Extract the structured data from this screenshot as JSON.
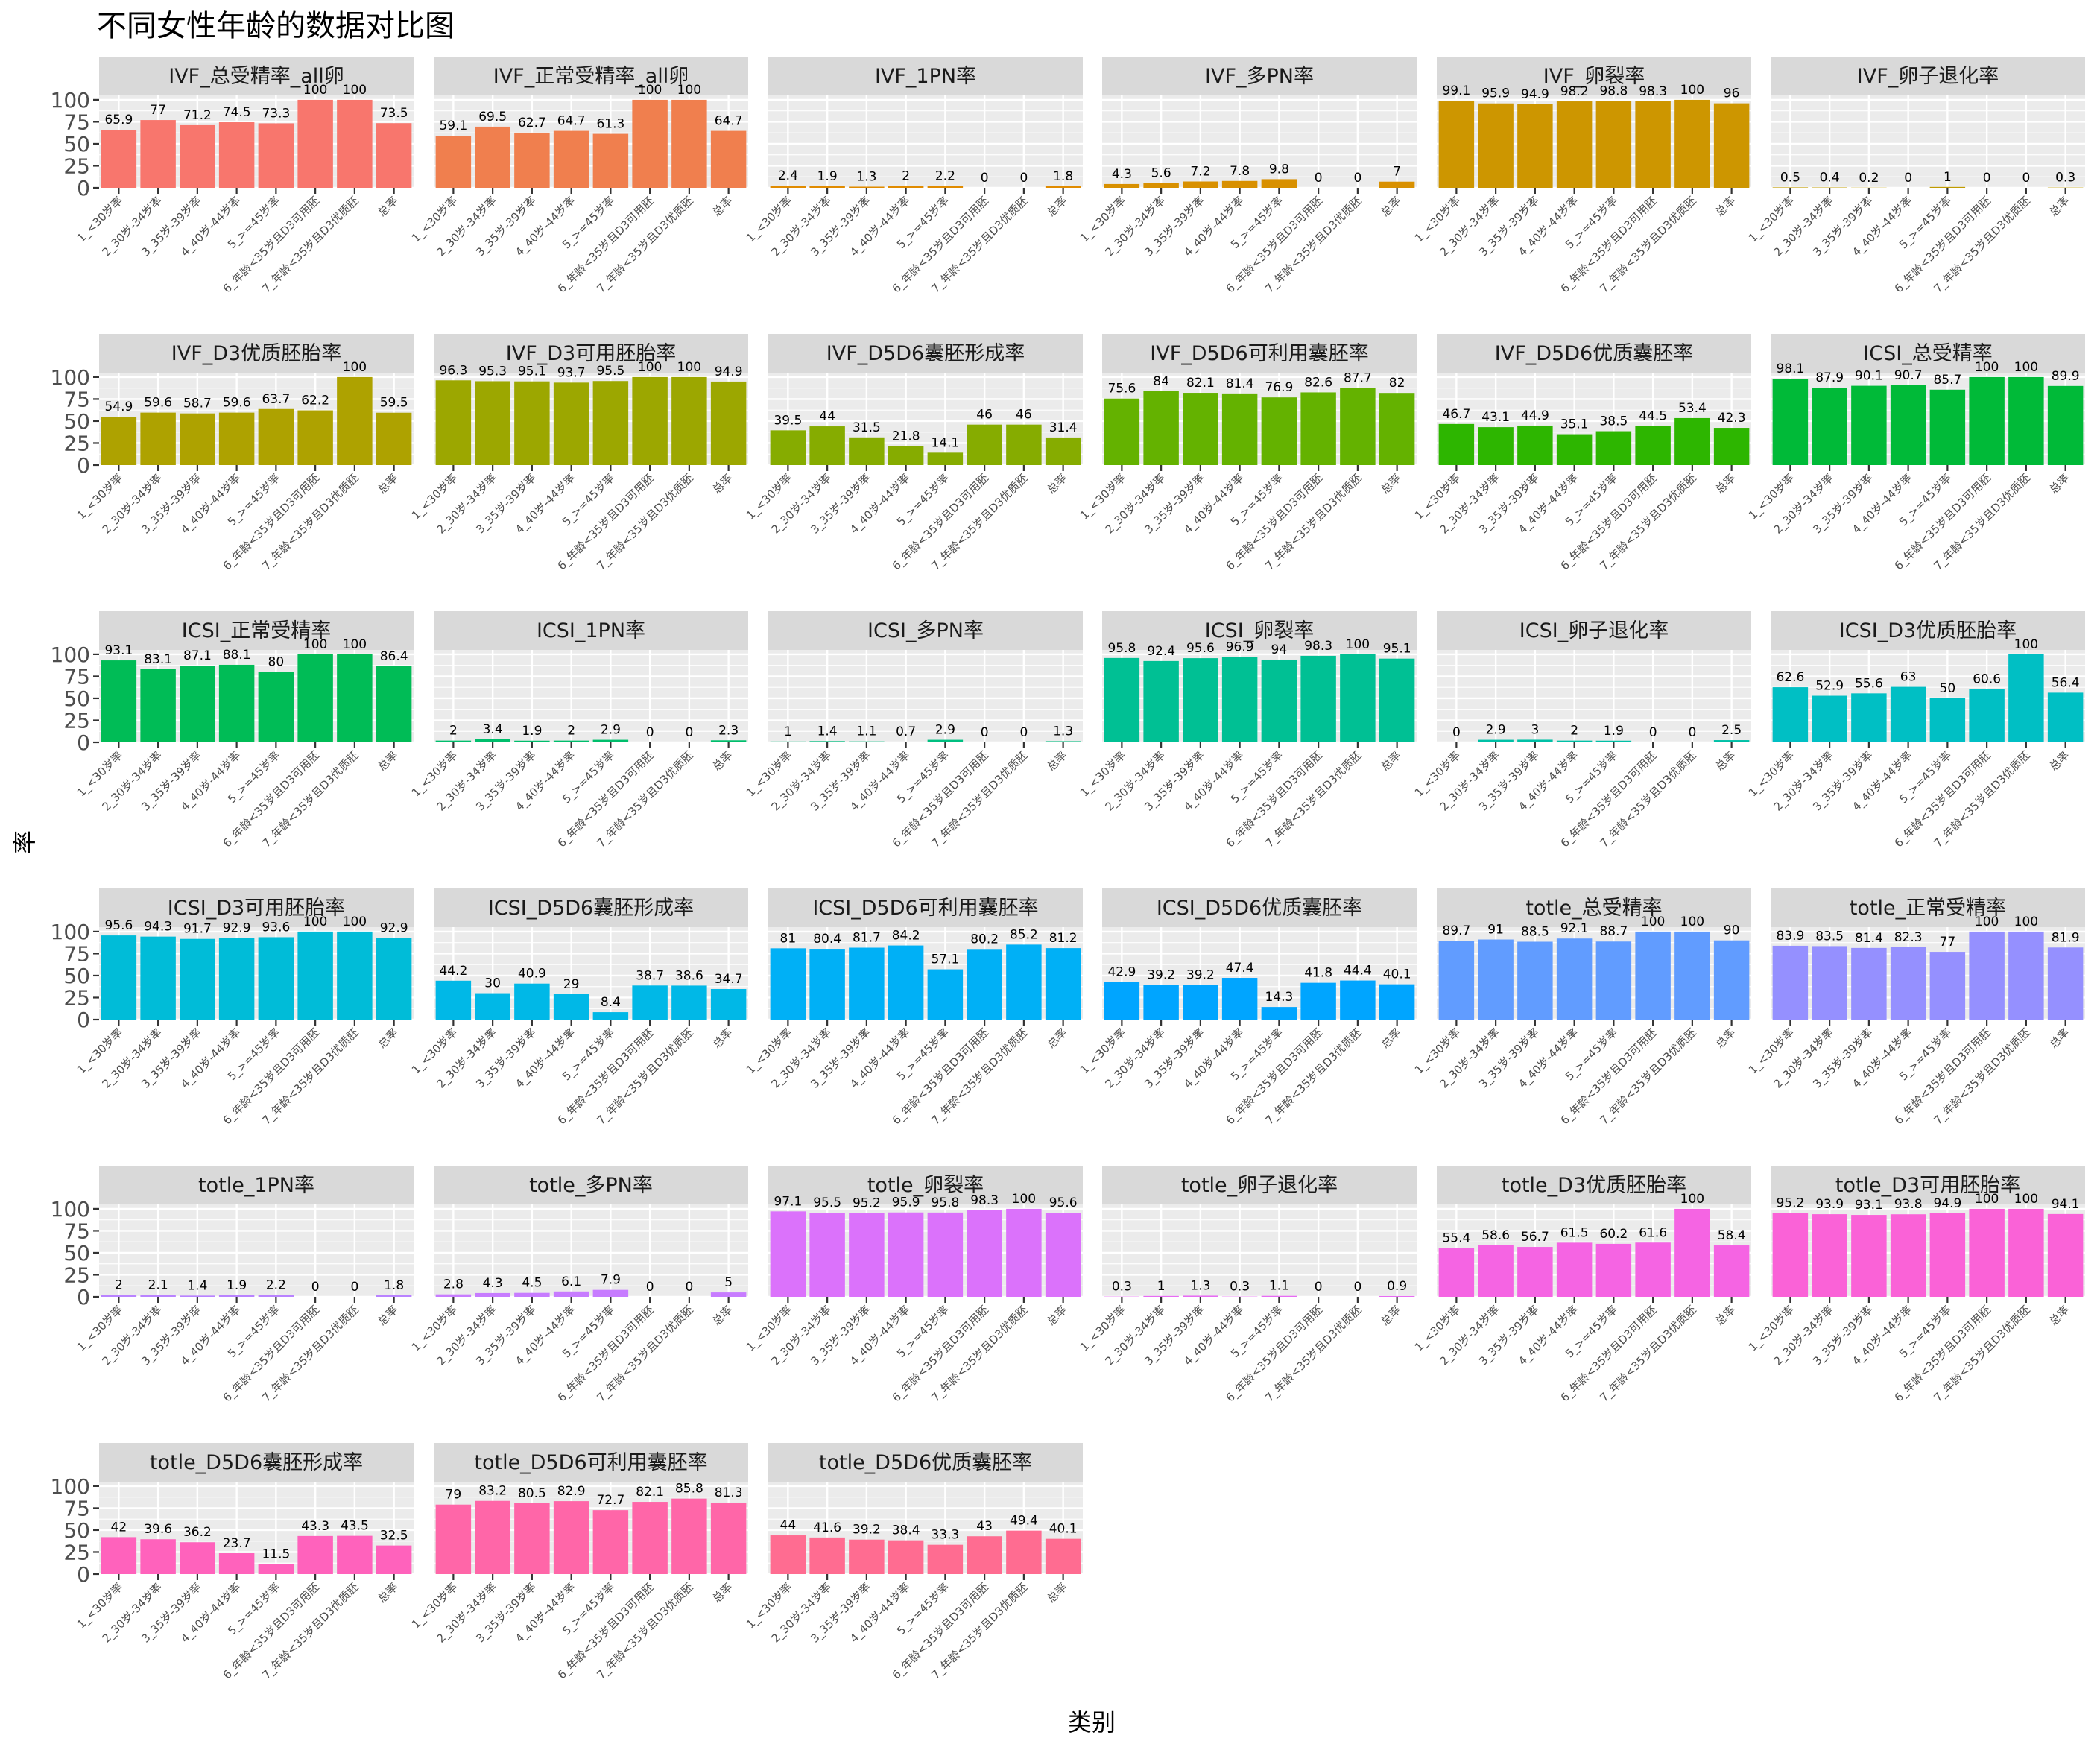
{
  "chart_data": {
    "type": "bar",
    "title": "不同女性年龄的数据对比图",
    "xlabel": "类别",
    "ylabel": "率",
    "ylim": [
      0,
      105
    ],
    "yticks": [
      0,
      25,
      50,
      75,
      100
    ],
    "facet_layout": "6 columns, 7 rows",
    "categories": [
      "1_<30岁率",
      "2_30岁-34岁率",
      "3_35岁-39岁率",
      "4_40岁-44岁率",
      "5_>=45岁率",
      "6_年龄<35岁且D3可用胚",
      "7_年龄<35岁且D3优质胚",
      "总率"
    ],
    "panels": [
      {
        "name": "IVF_总受精率_all卵",
        "color": "#F8766D",
        "values": [
          65.9,
          77,
          71.2,
          74.5,
          73.3,
          100,
          100,
          73.5
        ],
        "labels": [
          "65.9",
          "77",
          "71.2",
          "74.5",
          "73.3",
          "100",
          "100",
          "73.5"
        ]
      },
      {
        "name": "IVF_正常受精率_all卵",
        "color": "#F07F4E",
        "values": [
          59.1,
          69.5,
          62.7,
          64.7,
          61.3,
          100,
          100,
          64.7
        ],
        "labels": [
          "59.1",
          "69.5",
          "62.7",
          "64.7",
          "61.3",
          "100",
          "100",
          "64.7"
        ]
      },
      {
        "name": "IVF_1PN率",
        "color": "#E08B00",
        "values": [
          2.4,
          1.9,
          1.3,
          2,
          2.2,
          0,
          0,
          1.8
        ],
        "labels": [
          "2.4",
          "1.9",
          "1.3",
          "2",
          "2.2",
          "0",
          "0",
          "1.8"
        ]
      },
      {
        "name": "IVF_多PN率",
        "color": "#D89000",
        "values": [
          4.3,
          5.6,
          7.2,
          7.8,
          9.8,
          0,
          0,
          7
        ],
        "labels": [
          "4.3",
          "5.6",
          "7.2",
          "7.8",
          "9.8",
          "0",
          "0",
          "7"
        ]
      },
      {
        "name": "IVF_卵裂率",
        "color": "#CD9600",
        "values": [
          99.1,
          95.9,
          94.9,
          98.2,
          98.8,
          98.3,
          100,
          96
        ],
        "labels": [
          "99.1",
          "95.9",
          "94.9",
          "98.2",
          "98.8",
          "98.3",
          "100",
          "96"
        ]
      },
      {
        "name": "IVF_卵子退化率",
        "color": "#C09B00",
        "values": [
          0.5,
          0.4,
          0.2,
          0,
          1,
          0,
          0,
          0.3
        ],
        "labels": [
          "0.5",
          "0.4",
          "0.2",
          "0",
          "1",
          "0",
          "0",
          "0.3"
        ]
      },
      {
        "name": "IVF_D3优质胚胎率",
        "color": "#AEA200",
        "values": [
          54.9,
          59.6,
          58.7,
          59.6,
          63.7,
          62.2,
          100,
          59.5
        ],
        "labels": [
          "54.9",
          "59.6",
          "58.7",
          "59.6",
          "63.7",
          "62.2",
          "100",
          "59.5"
        ]
      },
      {
        "name": "IVF_D3可用胚胎率",
        "color": "#9CA700",
        "values": [
          96.3,
          95.3,
          95.1,
          93.7,
          95.5,
          100,
          100,
          94.9
        ],
        "labels": [
          "96.3",
          "95.3",
          "95.1",
          "93.7",
          "95.5",
          "100",
          "100",
          "94.9"
        ]
      },
      {
        "name": "IVF_D5D6囊胚形成率",
        "color": "#86AC00",
        "values": [
          39.5,
          44,
          31.5,
          21.8,
          14.1,
          46,
          46,
          31.4
        ],
        "labels": [
          "39.5",
          "44",
          "31.5",
          "21.8",
          "14.1",
          "46",
          "46",
          "31.4"
        ]
      },
      {
        "name": "IVF_D5D6可利用囊胚率",
        "color": "#64B200",
        "values": [
          75.6,
          84,
          82.1,
          81.4,
          76.9,
          82.6,
          87.7,
          82
        ],
        "labels": [
          "75.6",
          "84",
          "82.1",
          "81.4",
          "76.9",
          "82.6",
          "87.7",
          "82"
        ]
      },
      {
        "name": "IVF_D5D6优质囊胚率",
        "color": "#2DB600",
        "values": [
          46.7,
          43.1,
          44.9,
          35.1,
          38.5,
          44.5,
          53.4,
          42.3
        ],
        "labels": [
          "46.7",
          "43.1",
          "44.9",
          "35.1",
          "38.5",
          "44.5",
          "53.4",
          "42.3"
        ]
      },
      {
        "name": "ICSI_总受精率",
        "color": "#00BA38",
        "values": [
          98.1,
          87.9,
          90.1,
          90.7,
          85.7,
          100,
          100,
          89.9
        ],
        "labels": [
          "98.1",
          "87.9",
          "90.1",
          "90.7",
          "85.7",
          "100",
          "100",
          "89.9"
        ]
      },
      {
        "name": "ICSI_正常受精率",
        "color": "#00BC56",
        "values": [
          93.1,
          83.1,
          87.1,
          88.1,
          80,
          100,
          100,
          86.4
        ],
        "labels": [
          "93.1",
          "83.1",
          "87.1",
          "88.1",
          "80",
          "100",
          "100",
          "86.4"
        ]
      },
      {
        "name": "ICSI_1PN率",
        "color": "#00BE6C",
        "values": [
          2,
          3.4,
          1.9,
          2,
          2.9,
          0,
          0,
          2.3
        ],
        "labels": [
          "2",
          "3.4",
          "1.9",
          "2",
          "2.9",
          "0",
          "0",
          "2.3"
        ]
      },
      {
        "name": "ICSI_多PN率",
        "color": "#00BF80",
        "values": [
          1,
          1.4,
          1.1,
          0.7,
          2.9,
          0,
          0,
          1.3
        ],
        "labels": [
          "1",
          "1.4",
          "1.1",
          "0.7",
          "2.9",
          "0",
          "0",
          "1.3"
        ]
      },
      {
        "name": "ICSI_卵裂率",
        "color": "#00C094",
        "values": [
          95.8,
          92.4,
          95.6,
          96.9,
          94,
          98.3,
          100,
          95.1
        ],
        "labels": [
          "95.8",
          "92.4",
          "95.6",
          "96.9",
          "94",
          "98.3",
          "100",
          "95.1"
        ]
      },
      {
        "name": "ICSI_卵子退化率",
        "color": "#00C0A6",
        "values": [
          0,
          2.9,
          3,
          2,
          1.9,
          0,
          0,
          2.5
        ],
        "labels": [
          "0",
          "2.9",
          "3",
          "2",
          "1.9",
          "0",
          "0",
          "2.5"
        ]
      },
      {
        "name": "ICSI_D3优质胚胎率",
        "color": "#00BFC4",
        "values": [
          62.6,
          52.9,
          55.6,
          63,
          50,
          60.6,
          100,
          56.4
        ],
        "labels": [
          "62.6",
          "52.9",
          "55.6",
          "63",
          "50",
          "60.6",
          "100",
          "56.4"
        ]
      },
      {
        "name": "ICSI_D3可用胚胎率",
        "color": "#00BCD8",
        "values": [
          95.6,
          94.3,
          91.7,
          92.9,
          93.6,
          100,
          100,
          92.9
        ],
        "labels": [
          "95.6",
          "94.3",
          "91.7",
          "92.9",
          "93.6",
          "100",
          "100",
          "92.9"
        ]
      },
      {
        "name": "ICSI_D5D6囊胚形成率",
        "color": "#00B8E7",
        "values": [
          44.2,
          30,
          40.9,
          29,
          8.4,
          38.7,
          38.6,
          34.7
        ],
        "labels": [
          "44.2",
          "30",
          "40.9",
          "29",
          "8.4",
          "38.7",
          "38.6",
          "34.7"
        ]
      },
      {
        "name": "ICSI_D5D6可利用囊胚率",
        "color": "#00B0F6",
        "values": [
          81,
          80.4,
          81.7,
          84.2,
          57.1,
          80.2,
          85.2,
          81.2
        ],
        "labels": [
          "81",
          "80.4",
          "81.7",
          "84.2",
          "57.1",
          "80.2",
          "85.2",
          "81.2"
        ]
      },
      {
        "name": "ICSI_D5D6优质囊胚率",
        "color": "#00A5FF",
        "values": [
          42.9,
          39.2,
          39.2,
          47.4,
          14.3,
          41.8,
          44.4,
          40.1
        ],
        "labels": [
          "42.9",
          "39.2",
          "39.2",
          "47.4",
          "14.3",
          "41.8",
          "44.4",
          "40.1"
        ]
      },
      {
        "name": "totle_总受精率",
        "color": "#619CFF",
        "values": [
          89.7,
          91,
          88.5,
          92.1,
          88.7,
          100,
          100,
          90
        ],
        "labels": [
          "89.7",
          "91",
          "88.5",
          "92.1",
          "88.7",
          "100",
          "100",
          "90"
        ]
      },
      {
        "name": "totle_正常受精率",
        "color": "#9590FF",
        "values": [
          83.9,
          83.5,
          81.4,
          82.3,
          77,
          100,
          100,
          81.9
        ],
        "labels": [
          "83.9",
          "83.5",
          "81.4",
          "82.3",
          "77",
          "100",
          "100",
          "81.9"
        ]
      },
      {
        "name": "totle_1PN率",
        "color": "#B983FF",
        "values": [
          2,
          2.1,
          1.4,
          1.9,
          2.2,
          0,
          0,
          1.8
        ],
        "labels": [
          "2",
          "2.1",
          "1.4",
          "1.9",
          "2.2",
          "0",
          "0",
          "1.8"
        ]
      },
      {
        "name": "totle_多PN率",
        "color": "#C77CFF",
        "values": [
          2.8,
          4.3,
          4.5,
          6.1,
          7.9,
          0,
          0,
          5
        ],
        "labels": [
          "2.8",
          "4.3",
          "4.5",
          "6.1",
          "7.9",
          "0",
          "0",
          "5"
        ]
      },
      {
        "name": "totle_卵裂率",
        "color": "#DB72FB",
        "values": [
          97.1,
          95.5,
          95.2,
          95.9,
          95.8,
          98.3,
          100,
          95.6
        ],
        "labels": [
          "97.1",
          "95.5",
          "95.2",
          "95.9",
          "95.8",
          "98.3",
          "100",
          "95.6"
        ]
      },
      {
        "name": "totle_卵子退化率",
        "color": "#E76BF3",
        "values": [
          0.3,
          1,
          1.3,
          0.3,
          1.1,
          0,
          0,
          0.9
        ],
        "labels": [
          "0.3",
          "1",
          "1.3",
          "0.3",
          "1.1",
          "0",
          "0",
          "0.9"
        ]
      },
      {
        "name": "totle_D3优质胚胎率",
        "color": "#F564E3",
        "values": [
          55.4,
          58.6,
          56.7,
          61.5,
          60.2,
          61.6,
          100,
          58.4
        ],
        "labels": [
          "55.4",
          "58.6",
          "56.7",
          "61.5",
          "60.2",
          "61.6",
          "100",
          "58.4"
        ]
      },
      {
        "name": "totle_D3可用胚胎率",
        "color": "#FA62D7",
        "values": [
          95.2,
          93.9,
          93.1,
          93.8,
          94.9,
          100,
          100,
          94.1
        ],
        "labels": [
          "95.2",
          "93.9",
          "93.1",
          "93.8",
          "94.9",
          "100",
          "100",
          "94.1"
        ]
      },
      {
        "name": "totle_D5D6囊胚形成率",
        "color": "#FF62BC",
        "values": [
          42,
          39.6,
          36.2,
          23.7,
          11.5,
          43.3,
          43.5,
          32.5
        ],
        "labels": [
          "42",
          "39.6",
          "36.2",
          "23.7",
          "11.5",
          "43.3",
          "43.5",
          "32.5"
        ]
      },
      {
        "name": "totle_D5D6可利用囊胚率",
        "color": "#FF66A8",
        "values": [
          79,
          83.2,
          80.5,
          82.9,
          72.7,
          82.1,
          85.8,
          81.3
        ],
        "labels": [
          "79",
          "83.2",
          "80.5",
          "82.9",
          "72.7",
          "82.1",
          "85.8",
          "81.3"
        ]
      },
      {
        "name": "totle_D5D6优质囊胚率",
        "color": "#FF6C91",
        "values": [
          44,
          41.6,
          39.2,
          38.4,
          33.3,
          43,
          49.4,
          40.1
        ],
        "labels": [
          "44",
          "41.6",
          "39.2",
          "38.4",
          "33.3",
          "43",
          "49.4",
          "40.1"
        ]
      }
    ]
  }
}
